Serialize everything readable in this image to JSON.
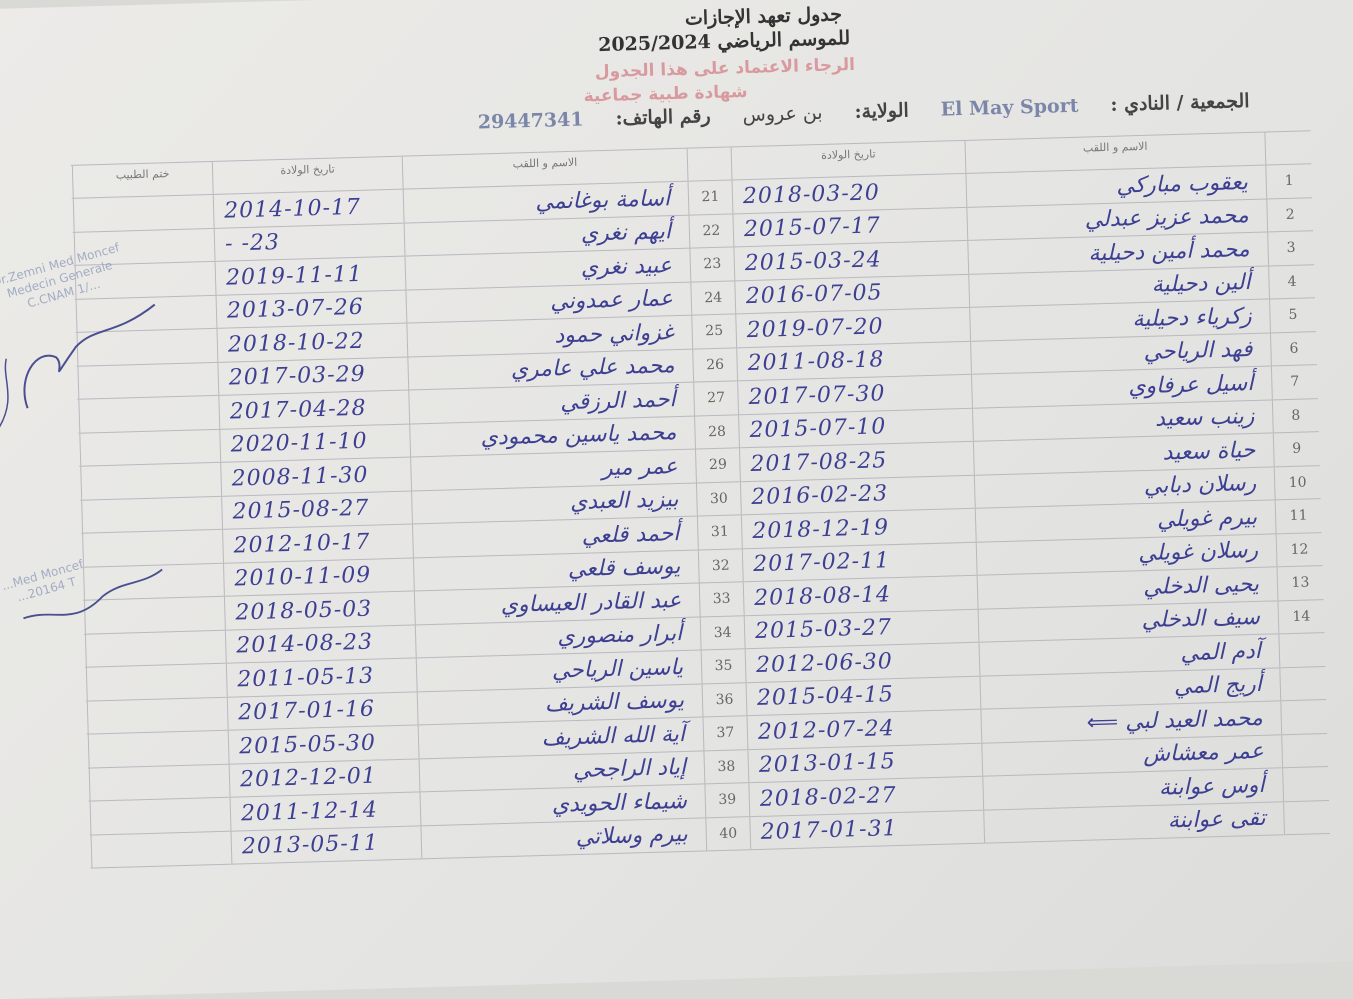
{
  "header": {
    "title_line1": "جدول تعهد الإجازات",
    "title_line2": "للموسم الرياضي 2025/2024",
    "note_line1": "الرجاء الاعتماد على هذا الجدول",
    "note_line2": "شهادة طبية جماعية",
    "club_label": "الجمعية / النادي :",
    "club_value": "El May Sport",
    "state_label": "الولاية:",
    "state_value": "بن عروس",
    "phone_label": "رقم الهاتف:",
    "phone_value": "29447341"
  },
  "columns": {
    "name": "الاسم و اللقب",
    "birth_date": "تاريخ الولادة",
    "doctor_stamp": "ختم الطبيب"
  },
  "right_rows": [
    {
      "num": "1",
      "name": "يعقوب مباركي",
      "date": "2018-03-20"
    },
    {
      "num": "2",
      "name": "محمد عزيز عبدلي",
      "date": "2015-07-17"
    },
    {
      "num": "3",
      "name": "محمد أمين دحيلية",
      "date": "2015-03-24"
    },
    {
      "num": "4",
      "name": "ألين دحيلية",
      "date": "2016-07-05"
    },
    {
      "num": "5",
      "name": "زكرياء دحيلية",
      "date": "2019-07-20"
    },
    {
      "num": "6",
      "name": "فهد الرياحي",
      "date": "2011-08-18"
    },
    {
      "num": "7",
      "name": "أسيل عرفاوي",
      "date": "2017-07-30"
    },
    {
      "num": "8",
      "name": "زينب سعيد",
      "date": "2015-07-10"
    },
    {
      "num": "9",
      "name": "حياة سعيد",
      "date": "2017-08-25"
    },
    {
      "num": "10",
      "name": "رسلان دبابي",
      "date": "2016-02-23"
    },
    {
      "num": "11",
      "name": "بيرم غويلي",
      "date": "2018-12-19"
    },
    {
      "num": "12",
      "name": "رسلان غويلي",
      "date": "2017-02-11"
    },
    {
      "num": "13",
      "name": "يحيى الدخلي",
      "date": "2018-08-14"
    },
    {
      "num": "14",
      "name": "سيف الدخلي",
      "date": "2015-03-27"
    },
    {
      "num": "",
      "name": "آدم المي",
      "date": "2012-06-30"
    },
    {
      "num": "",
      "name": "أريج المي",
      "date": "2015-04-15"
    },
    {
      "num": "",
      "name": "محمد العيد لبي ⟸",
      "date": "2012-07-24"
    },
    {
      "num": "",
      "name": "عمر معشاش",
      "date": "2013-01-15"
    },
    {
      "num": "",
      "name": "أوس عوابنة",
      "date": "2018-02-27"
    },
    {
      "num": "",
      "name": "تقى عوابنة",
      "date": "2017-01-31"
    }
  ],
  "left_rows": [
    {
      "num": "21",
      "name": "أسامة بوغانمي",
      "date": "2014-10-17"
    },
    {
      "num": "22",
      "name": "أيهم نغري",
      "date": "-  -23"
    },
    {
      "num": "23",
      "name": "عبيد نغري",
      "date": "2019-11-11"
    },
    {
      "num": "24",
      "name": "عمار عمدوني",
      "date": "2013-07-26"
    },
    {
      "num": "25",
      "name": "غزواني حمود",
      "date": "2018-10-22"
    },
    {
      "num": "26",
      "name": "محمد علي عامري",
      "date": "2017-03-29"
    },
    {
      "num": "27",
      "name": "أحمد الرزقي",
      "date": "2017-04-28"
    },
    {
      "num": "28",
      "name": "محمد ياسين محمودي",
      "date": "2020-11-10"
    },
    {
      "num": "29",
      "name": "عمر مير",
      "date": "2008-11-30"
    },
    {
      "num": "30",
      "name": "بيزيد العبدي",
      "date": "2015-08-27"
    },
    {
      "num": "31",
      "name": "أحمد قلعي",
      "date": "2012-10-17"
    },
    {
      "num": "32",
      "name": "يوسف قلعي",
      "date": "2010-11-09"
    },
    {
      "num": "33",
      "name": "عبد القادر العيساوي",
      "date": "2018-05-03"
    },
    {
      "num": "34",
      "name": "أبرار منصوري",
      "date": "2014-08-23"
    },
    {
      "num": "35",
      "name": "ياسين الرياحي",
      "date": "2011-05-13"
    },
    {
      "num": "36",
      "name": "يوسف الشريف",
      "date": "2017-01-16"
    },
    {
      "num": "37",
      "name": "آية الله الشريف",
      "date": "2015-05-30"
    },
    {
      "num": "38",
      "name": "إياد الراجحي",
      "date": "2012-12-01"
    },
    {
      "num": "39",
      "name": "شيماء الحويدي",
      "date": "2011-12-14"
    },
    {
      "num": "40",
      "name": "بيرم وسلاتي",
      "date": "2013-05-11"
    }
  ],
  "stamp": {
    "line1": "Dr.Zemni Med Moncef",
    "line2": "Medecin Generale",
    "line3": "C.CNAM 1/..."
  },
  "stamp2": {
    "line1": "...Med Moncef",
    "line2": "...20164 T"
  },
  "colors": {
    "ink": "#3c3f92",
    "note": "#d89a9f",
    "stamp": "#8b98b8"
  }
}
